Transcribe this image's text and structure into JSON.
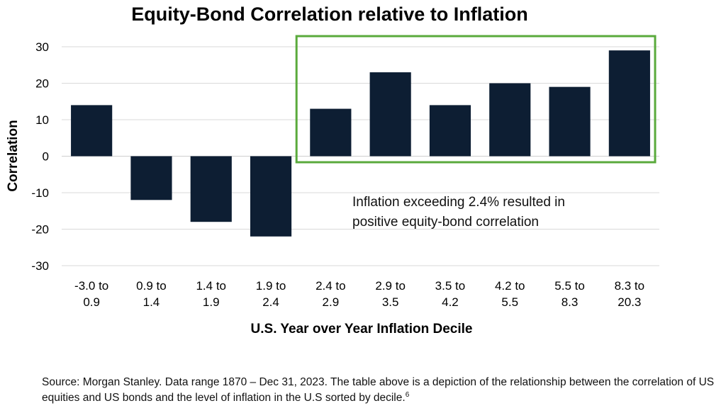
{
  "chart_data": {
    "type": "bar",
    "title": "Equity-Bond Correlation relative to Inflation",
    "xlabel": "U.S. Year over Year Inflation Decile",
    "ylabel": "Correlation",
    "ylim": [
      -30,
      30
    ],
    "yticks": [
      "30",
      "20",
      "10",
      "0",
      "-10",
      "-20",
      "-30"
    ],
    "grid": true,
    "categories": [
      [
        "-3.0 to",
        "0.9"
      ],
      [
        "0.9 to",
        "1.4"
      ],
      [
        "1.4 to",
        "1.9"
      ],
      [
        "1.9 to",
        "2.4"
      ],
      [
        "2.4 to",
        "2.9"
      ],
      [
        "2.9 to",
        "3.5"
      ],
      [
        "3.5 to",
        "4.2"
      ],
      [
        "4.2 to",
        "5.5"
      ],
      [
        "5.5 to",
        "8.3"
      ],
      [
        "8.3 to",
        "20.3"
      ]
    ],
    "values": [
      14,
      -12,
      -18,
      -22,
      13,
      23,
      14,
      20,
      19,
      29
    ],
    "bar_color": "#0d1e33",
    "highlight": {
      "from_index": 4,
      "to_index": 9,
      "color": "#5aaa3c",
      "text": [
        "Inflation exceeding 2.4% resulted in",
        "positive equity-bond correlation"
      ]
    }
  },
  "source_note": {
    "text": "Source: Morgan Stanley. Data range 1870 – Dec 31, 2023. The table above is a depiction of the relationship between the correlation of US equities and US bonds and the level of inflation in the U.S sorted by decile.",
    "footnote_mark": "6"
  }
}
